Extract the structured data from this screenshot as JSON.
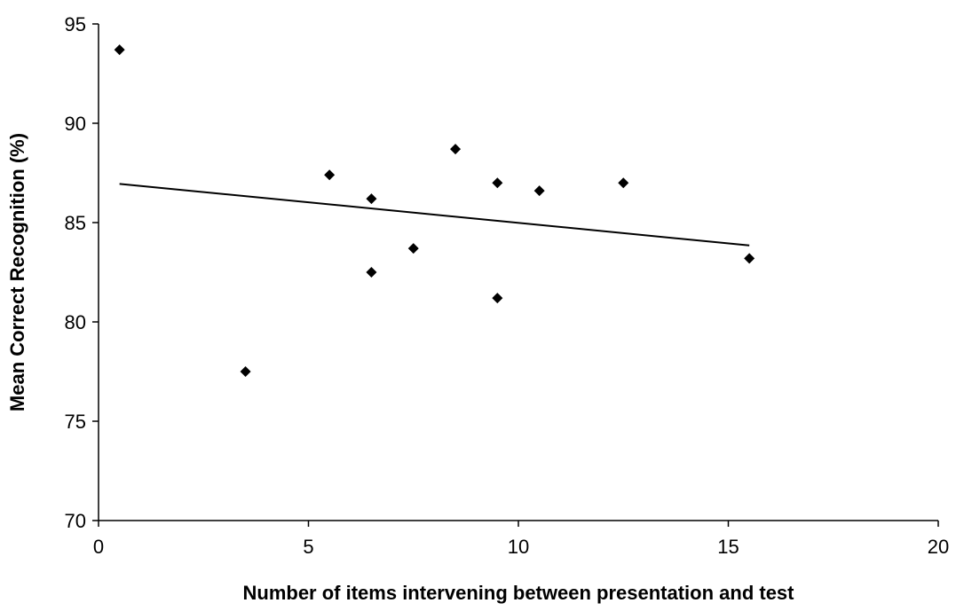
{
  "chart_data": {
    "type": "scatter",
    "title": "",
    "xlabel": "Number of items intervening between presentation and test",
    "ylabel": "Mean Correct Recognition (%)",
    "xlim": [
      0,
      20
    ],
    "ylim": [
      70,
      95
    ],
    "xticks": [
      "0",
      "5",
      "10",
      "15",
      "20"
    ],
    "yticks": [
      "70",
      "75",
      "80",
      "85",
      "90",
      "95"
    ],
    "grid": false,
    "legend": "none",
    "marker": "diamond",
    "colors": {
      "points": "#000000",
      "trendline": "#000000",
      "axes": "#000000"
    },
    "series": [
      {
        "points": [
          {
            "x": 0.5,
            "y": 93.7
          },
          {
            "x": 3.5,
            "y": 77.5
          },
          {
            "x": 5.5,
            "y": 87.4
          },
          {
            "x": 6.5,
            "y": 86.2
          },
          {
            "x": 6.5,
            "y": 82.5
          },
          {
            "x": 7.5,
            "y": 83.7
          },
          {
            "x": 8.5,
            "y": 88.7
          },
          {
            "x": 9.5,
            "y": 87.0
          },
          {
            "x": 9.5,
            "y": 81.2
          },
          {
            "x": 10.5,
            "y": 86.6
          },
          {
            "x": 12.5,
            "y": 87.0
          },
          {
            "x": 15.5,
            "y": 83.2
          }
        ]
      }
    ],
    "trendline": {
      "type": "linear",
      "points": [
        {
          "x": 0.5,
          "y": 86.95
        },
        {
          "x": 15.5,
          "y": 83.85
        }
      ]
    }
  }
}
